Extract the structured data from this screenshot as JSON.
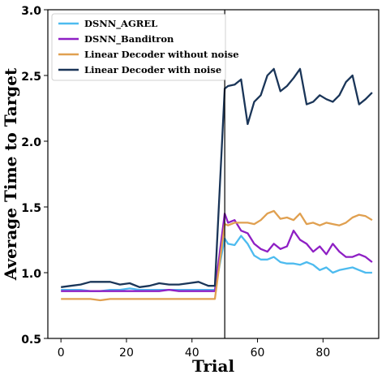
{
  "chart_data": {
    "type": "line",
    "xlabel": "Trial",
    "ylabel": "Average Time to Target",
    "xlim": [
      -4,
      97
    ],
    "ylim": [
      0.5,
      3.0
    ],
    "xticks": [
      0,
      20,
      40,
      60,
      80
    ],
    "yticks": [
      0.5,
      1.0,
      1.5,
      2.0,
      2.5,
      3.0
    ],
    "ytick_labels": [
      "0.5",
      "1.0",
      "1.5",
      "2.0",
      "2.5",
      "3.0"
    ],
    "vline_x": 50,
    "legend_position": "top-left",
    "series": [
      {
        "name": "DSNN_AGREL",
        "color": "#4dbbef",
        "x": [
          0,
          3,
          6,
          9,
          12,
          15,
          18,
          21,
          24,
          27,
          30,
          33,
          36,
          39,
          42,
          45,
          47,
          50,
          51,
          53,
          55,
          57,
          59,
          61,
          63,
          65,
          67,
          69,
          71,
          73,
          75,
          77,
          79,
          81,
          83,
          85,
          87,
          89,
          91,
          93,
          95
        ],
        "y": [
          0.87,
          0.87,
          0.87,
          0.86,
          0.86,
          0.87,
          0.87,
          0.88,
          0.87,
          0.87,
          0.87,
          0.87,
          0.87,
          0.87,
          0.87,
          0.87,
          0.87,
          1.26,
          1.22,
          1.21,
          1.28,
          1.22,
          1.13,
          1.1,
          1.1,
          1.12,
          1.08,
          1.07,
          1.07,
          1.06,
          1.08,
          1.06,
          1.02,
          1.04,
          1.0,
          1.02,
          1.03,
          1.04,
          1.02,
          1.0,
          1.0
        ]
      },
      {
        "name": "DSNN_Banditron",
        "color": "#8e1fc4",
        "x": [
          0,
          3,
          6,
          9,
          12,
          15,
          18,
          21,
          24,
          27,
          30,
          33,
          36,
          39,
          42,
          45,
          47,
          50,
          51,
          53,
          55,
          57,
          59,
          61,
          63,
          65,
          67,
          69,
          71,
          73,
          75,
          77,
          79,
          81,
          83,
          85,
          87,
          89,
          91,
          93,
          95
        ],
        "y": [
          0.86,
          0.86,
          0.86,
          0.86,
          0.86,
          0.86,
          0.86,
          0.86,
          0.86,
          0.86,
          0.86,
          0.87,
          0.86,
          0.86,
          0.86,
          0.86,
          0.86,
          1.45,
          1.38,
          1.4,
          1.32,
          1.3,
          1.22,
          1.18,
          1.16,
          1.22,
          1.18,
          1.2,
          1.32,
          1.25,
          1.22,
          1.16,
          1.2,
          1.14,
          1.22,
          1.16,
          1.12,
          1.12,
          1.14,
          1.12,
          1.08
        ]
      },
      {
        "name": "Linear Decoder without noise",
        "color": "#e0a050",
        "x": [
          0,
          3,
          6,
          9,
          12,
          15,
          18,
          21,
          24,
          27,
          30,
          33,
          36,
          39,
          42,
          45,
          47,
          50,
          51,
          53,
          55,
          57,
          59,
          61,
          63,
          65,
          67,
          69,
          71,
          73,
          75,
          77,
          79,
          81,
          83,
          85,
          87,
          89,
          91,
          93,
          95
        ],
        "y": [
          0.8,
          0.8,
          0.8,
          0.8,
          0.79,
          0.8,
          0.8,
          0.8,
          0.8,
          0.8,
          0.8,
          0.8,
          0.8,
          0.8,
          0.8,
          0.8,
          0.8,
          1.37,
          1.36,
          1.38,
          1.38,
          1.38,
          1.37,
          1.4,
          1.45,
          1.47,
          1.41,
          1.42,
          1.4,
          1.45,
          1.37,
          1.38,
          1.36,
          1.38,
          1.37,
          1.36,
          1.38,
          1.42,
          1.44,
          1.43,
          1.4
        ]
      },
      {
        "name": "Linear Decoder with noise",
        "color": "#1a3558",
        "x": [
          0,
          3,
          6,
          9,
          12,
          15,
          18,
          21,
          24,
          27,
          30,
          33,
          36,
          39,
          42,
          45,
          47,
          50,
          51,
          53,
          55,
          57,
          59,
          61,
          63,
          65,
          67,
          69,
          71,
          73,
          75,
          77,
          79,
          81,
          83,
          85,
          87,
          89,
          91,
          93,
          95
        ],
        "y": [
          0.89,
          0.9,
          0.91,
          0.93,
          0.93,
          0.93,
          0.91,
          0.92,
          0.89,
          0.9,
          0.92,
          0.91,
          0.91,
          0.92,
          0.93,
          0.9,
          0.9,
          2.4,
          2.42,
          2.43,
          2.47,
          2.13,
          2.3,
          2.35,
          2.5,
          2.55,
          2.38,
          2.42,
          2.48,
          2.55,
          2.28,
          2.3,
          2.35,
          2.32,
          2.3,
          2.35,
          2.45,
          2.5,
          2.28,
          2.32,
          2.37
        ]
      }
    ]
  }
}
